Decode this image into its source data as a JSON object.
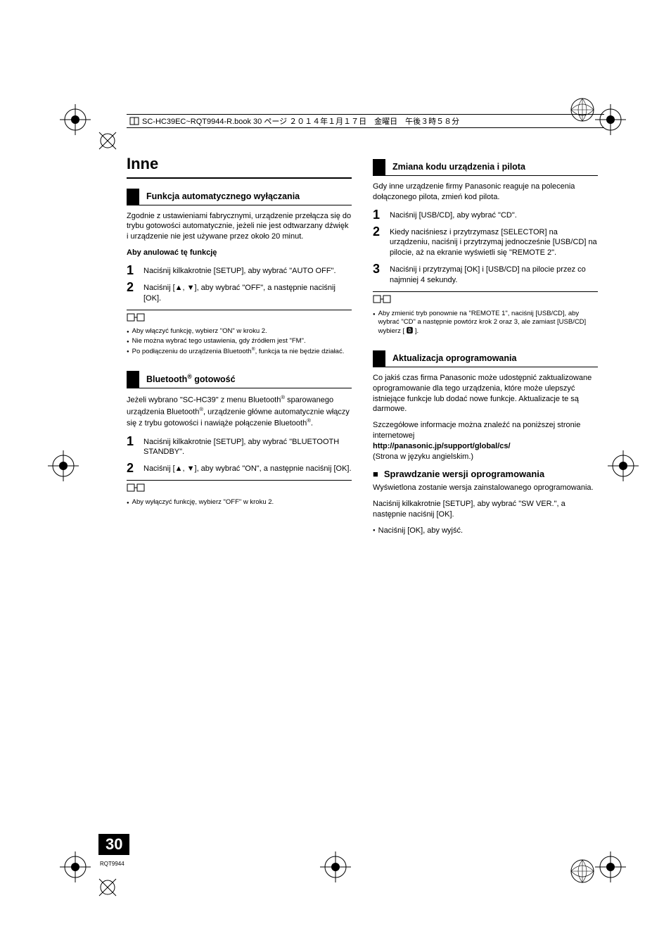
{
  "header": "SC-HC39EC~RQT9944-R.book  30 ページ  ２０１４年１月１７日　金曜日　午後３時５８分",
  "title": "Inne",
  "page_number": "30",
  "doc_code": "RQT9944",
  "left": {
    "sec1": {
      "heading": "Funkcja automatycznego wyłączania",
      "intro": "Zgodnie z ustawieniami fabrycznymi, urządzenie przełącza się do trybu gotowości automatycznie, jeżeli nie jest odtwarzany dźwięk i urządzenie nie jest używane przez około 20 minut.",
      "cancel_label": "Aby anulować tę funkcję",
      "step1": "Naciśnij kilkakrotnie [SETUP], aby wybrać \"AUTO OFF\".",
      "step2": "Naciśnij [▲, ▼], aby wybrać \"OFF\", a następnie naciśnij [OK].",
      "note1": "Aby włączyć funkcję, wybierz \"ON\" w kroku 2.",
      "note2": "Nie można wybrać tego ustawienia, gdy źródłem jest \"FM\".",
      "note3_a": "Po podłączeniu do urządzenia Bluetooth",
      "note3_b": ", funkcja ta nie będzie działać."
    },
    "sec2": {
      "heading_a": "Bluetooth",
      "heading_b": " gotowość",
      "intro_a": "Jeżeli wybrano \"SC-HC39\" z menu Bluetooth",
      "intro_b": " sparowanego urządzenia Bluetooth",
      "intro_c": ", urządzenie główne automatycznie włączy się z trybu gotowości i nawiąże połączenie Bluetooth",
      "intro_d": ".",
      "step1": "Naciśnij kilkakrotnie [SETUP], aby wybrać \"BLUETOOTH STANDBY\".",
      "step2": "Naciśnij [▲, ▼], aby wybrać \"ON\", a następnie naciśnij [OK].",
      "note1": "Aby wyłączyć funkcję, wybierz \"OFF\" w kroku 2."
    }
  },
  "right": {
    "sec1": {
      "heading": "Zmiana kodu urządzenia i pilota",
      "intro": "Gdy inne urządzenie firmy Panasonic reaguje na polecenia dołączonego pilota, zmień kod pilota.",
      "step1": "Naciśnij [USB/CD], aby wybrać \"CD\".",
      "step2": "Kiedy naciśniesz i przytrzymasz [SELECTOR] na urządzeniu, naciśnij i przytrzymaj jednocześnie [USB/CD] na pilocie, aż na ekranie wyświetli się \"REMOTE 2\".",
      "step3": "Naciśnij i przytrzymaj [OK] i [USB/CD] na pilocie przez co najmniej 4 sekundy.",
      "note1": "Aby zmienić tryb ponownie na \"REMOTE 1\", naciśnij [USB/CD], aby wybrać \"CD\" a następnie powtórz krok 2 oraz 3, ale zamiast [USB/CD] wybierz [ 🅱 ]."
    },
    "sec2": {
      "heading": "Aktualizacja oprogramowania",
      "intro": "Co jakiś czas firma Panasonic może udostępnić zaktualizowane oprogramowanie dla tego urządzenia, które może ulepszyć istniejące funkcje lub dodać nowe funkcje. Aktualizacje te są darmowe.",
      "intro2": "Szczegółowe informacje można znaleźć na poniższej stronie internetowej",
      "url": "http://panasonic.jp/support/global/cs/",
      "url_note": "(Strona w języku angielskim.)",
      "subhead": "Sprawdzanie wersji oprogramowania",
      "sub_intro": "Wyświetlona zostanie wersja zainstalowanego oprogramowania.",
      "sub_body": "Naciśnij kilkakrotnie [SETUP], aby wybrać \"SW VER.\", a następnie naciśnij [OK].",
      "sub_note": "Naciśnij [OK], aby wyjść."
    }
  }
}
